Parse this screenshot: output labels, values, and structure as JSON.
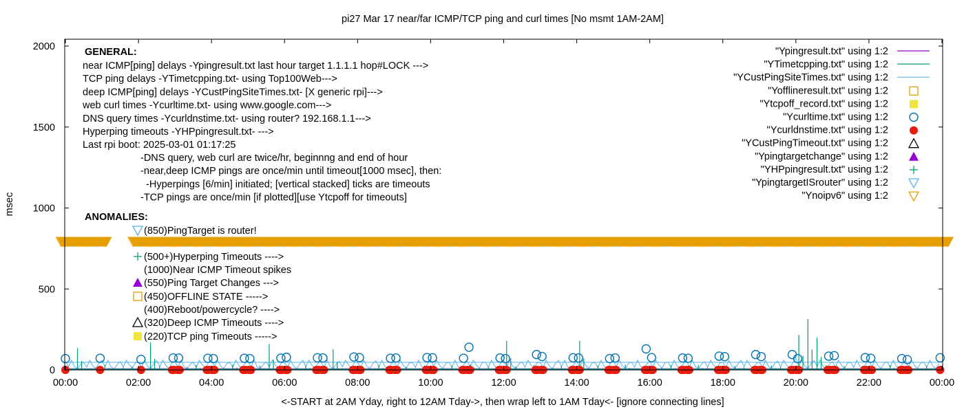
{
  "chart_data": {
    "type": "line",
    "title": "pi27 Mar 17  near/far ICMP/TCP ping and curl times [No msmt 1AM-2AM]",
    "xlabel": "<-START at 2AM Yday, right to 12AM Tday->, then wrap left to 1AM Tday<- [ignore connecting lines]",
    "ylabel": "msec",
    "xlim": [
      0,
      24
    ],
    "ylim": [
      0,
      2040
    ],
    "x_ticks": [
      "00:00",
      "02:00",
      "04:00",
      "06:00",
      "08:00",
      "10:00",
      "12:00",
      "14:00",
      "16:00",
      "18:00",
      "20:00",
      "22:00",
      "00:00"
    ],
    "y_ticks": [
      "0",
      "500",
      "1000",
      "1500",
      "2000"
    ],
    "y_tick_values": [
      0,
      500,
      1000,
      1500,
      2000
    ],
    "grid": false,
    "legend_position": "top-right",
    "legend": [
      {
        "label": "\"Ypingresult.txt\" using 1:2",
        "style": "line",
        "color": "#9400d3"
      },
      {
        "label": "\"YTimetcpping.txt\" using 1:2",
        "style": "line",
        "color": "#009e73"
      },
      {
        "label": "\"YCustPingSiteTimes.txt\" using 1:2",
        "style": "line",
        "color": "#56b4e9"
      },
      {
        "label": "\"Yofflineresult.txt\" using 1:2",
        "style": "open-square",
        "color": "#e69f00"
      },
      {
        "label": "\"Ytcpoff_record.txt\" using 1:2",
        "style": "filled-square",
        "color": "#f0e442"
      },
      {
        "label": "\"Ycurltime.txt\" using 1:2",
        "style": "open-circle",
        "color": "#0072b2"
      },
      {
        "label": "\"Ycurldnstime.txt\" using 1:2",
        "style": "filled-circle",
        "color": "#e51e10"
      },
      {
        "label": "\"YCustPingTimeout.txt\" using 1:2",
        "style": "open-triangle",
        "color": "#000000"
      },
      {
        "label": "\"Ypingtargetchange\" using 1:2",
        "style": "filled-triangle",
        "color": "#9400d3"
      },
      {
        "label": "\"YHPpingresult.txt\" using 1:2",
        "style": "plus",
        "color": "#009e73"
      },
      {
        "label": "\"YpingtargetISrouter\" using 1:2",
        "style": "open-down-triangle",
        "color": "#56b4e9"
      },
      {
        "label": "\"Ynoipv6\" using 1:2",
        "style": "open-down-triangle",
        "color": "#e69f00"
      }
    ],
    "series": {
      "tcp_step_hours": 0.25,
      "tcp": [
        5,
        135,
        8,
        12,
        30,
        6,
        15,
        20,
        10,
        170,
        25,
        8,
        12,
        18,
        30,
        6,
        22,
        10,
        35,
        14,
        8,
        26,
        160,
        12,
        18,
        9,
        28,
        14,
        20,
        127,
        11,
        24,
        16,
        8,
        30,
        12,
        22,
        18,
        10,
        28,
        15,
        9,
        26,
        12,
        34,
        8,
        20,
        14,
        180,
        22,
        10,
        30,
        16,
        12,
        24,
        18,
        180,
        10,
        26,
        14,
        20,
        32,
        8,
        16,
        24,
        12,
        28,
        10,
        18,
        30,
        14,
        22,
        9,
        26,
        16,
        20,
        12,
        28,
        18,
        10,
        216,
        314,
        200,
        30,
        14,
        22,
        10,
        26,
        18,
        12,
        30,
        16,
        20,
        8,
        24,
        12
      ],
      "cust": [
        55,
        20,
        48,
        25,
        60,
        18,
        52,
        30,
        45,
        22,
        58,
        28,
        50,
        20,
        47,
        32,
        62,
        24,
        46,
        26,
        55,
        19,
        50,
        30,
        44,
        22,
        60,
        27,
        49,
        21,
        53,
        31,
        46,
        24,
        57,
        20,
        50,
        28,
        45,
        23,
        61,
        26,
        48,
        21,
        54,
        30,
        47,
        25,
        58,
        22,
        50,
        29,
        46,
        24,
        59,
        20,
        52,
        27,
        45,
        23,
        60,
        25,
        49,
        22,
        53,
        30,
        47,
        24,
        57,
        21,
        51,
        28,
        46,
        23,
        60,
        26,
        48,
        22,
        55,
        29,
        70,
        24,
        58,
        21,
        52,
        28,
        47,
        23,
        56,
        26,
        50,
        22,
        54,
        27,
        48,
        24
      ]
    },
    "curl": [
      [
        0.0,
        70
      ],
      [
        0.95,
        72
      ],
      [
        2.07,
        65
      ],
      [
        2.95,
        74
      ],
      [
        3.1,
        73
      ],
      [
        3.9,
        72
      ],
      [
        4.05,
        70
      ],
      [
        4.9,
        72
      ],
      [
        5.05,
        70
      ],
      [
        5.9,
        73
      ],
      [
        6.05,
        78
      ],
      [
        6.9,
        75
      ],
      [
        7.05,
        74
      ],
      [
        7.9,
        80
      ],
      [
        8.05,
        76
      ],
      [
        8.9,
        72
      ],
      [
        9.05,
        74
      ],
      [
        9.9,
        76
      ],
      [
        10.05,
        75
      ],
      [
        10.9,
        72
      ],
      [
        11.05,
        140
      ],
      [
        11.9,
        74
      ],
      [
        12.05,
        70
      ],
      [
        12.9,
        95
      ],
      [
        13.05,
        83
      ],
      [
        13.9,
        75
      ],
      [
        14.05,
        74
      ],
      [
        14.9,
        70
      ],
      [
        15.05,
        74
      ],
      [
        15.9,
        130
      ],
      [
        16.05,
        76
      ],
      [
        16.9,
        74
      ],
      [
        17.05,
        72
      ],
      [
        17.9,
        85
      ],
      [
        18.05,
        82
      ],
      [
        18.9,
        95
      ],
      [
        19.05,
        82
      ],
      [
        19.9,
        95
      ],
      [
        20.05,
        70
      ],
      [
        20.9,
        85
      ],
      [
        21.05,
        88
      ],
      [
        21.9,
        76
      ],
      [
        22.05,
        72
      ],
      [
        22.9,
        70
      ],
      [
        23.05,
        64
      ],
      [
        23.95,
        75
      ]
    ],
    "dns_hours": [
      0.0,
      0.95,
      2.07,
      2.95,
      3.1,
      3.9,
      4.05,
      4.9,
      5.05,
      5.9,
      6.05,
      6.9,
      7.05,
      7.9,
      8.05,
      8.9,
      9.05,
      9.9,
      10.05,
      10.9,
      11.05,
      11.9,
      12.05,
      12.9,
      13.05,
      13.9,
      14.05,
      14.9,
      15.05,
      15.9,
      16.05,
      16.9,
      17.05,
      17.9,
      18.05,
      18.9,
      19.05,
      19.9,
      20.05,
      20.9,
      21.05,
      21.9,
      22.05,
      22.9,
      23.05,
      23.95
    ],
    "dns_value": 0,
    "noipv6": {
      "value": 785,
      "hour_ranges": [
        [
          -0.12,
          1.13
        ],
        [
          1.85,
          24.2
        ]
      ]
    }
  },
  "annotations": {
    "general_heading": "GENERAL:",
    "general_lines": [
      "near ICMP[ping] delays -Ypingresult.txt last hour target 1.1.1.1 hop#LOCK --->",
      "TCP ping delays -YTimetcpping.txt- using Top100Web--->",
      "deep ICMP[ping] delays -YCustPingSiteTimes.txt- [X generic rpi]--->",
      "web curl times -Ycurltime.txt- using www.google.com--->",
      "DNS query times -Ycurldnstime.txt- using router? 192.168.1.1--->",
      "Hyperping timeouts -YHPpingresult.txt- --->",
      "Last rpi boot: 2025-03-01 01:17:25"
    ],
    "notes": [
      "-DNS query, web curl are twice/hr, beginnng and end of hour",
      "-near,deep ICMP pings are once/min until timeout[1000 msec], then:",
      "  -Hyperpings [6/min] initiated; [vertical stacked] ticks are timeouts",
      "-TCP pings are once/min [if plotted][use Ytcpoff for timeouts]"
    ],
    "anomalies_heading": "ANOMALIES:",
    "anomalies": [
      {
        "text": "(850)PingTarget is router!",
        "marker": "open-down-triangle",
        "color": "#56b4e9"
      },
      {
        "text": "(500+)Hyperping Timeouts ---->",
        "marker": "plus",
        "color": "#009e73"
      },
      {
        "text": "(1000)Near ICMP Timeout spikes",
        "marker": "",
        "color": ""
      },
      {
        "text": "(550)Ping Target Changes --->",
        "marker": "filled-triangle",
        "color": "#9400d3"
      },
      {
        "text": "(450)OFFLINE STATE ----->",
        "marker": "open-square",
        "color": "#e69f00"
      },
      {
        "text": "(400)Reboot/powercycle? ---->",
        "marker": "",
        "color": ""
      },
      {
        "text": "(320)Deep ICMP Timeouts ---->",
        "marker": "open-triangle",
        "color": "#000000"
      },
      {
        "text": "(220)TCP ping Timeouts ----->",
        "marker": "filled-square",
        "color": "#f0e442"
      }
    ]
  }
}
